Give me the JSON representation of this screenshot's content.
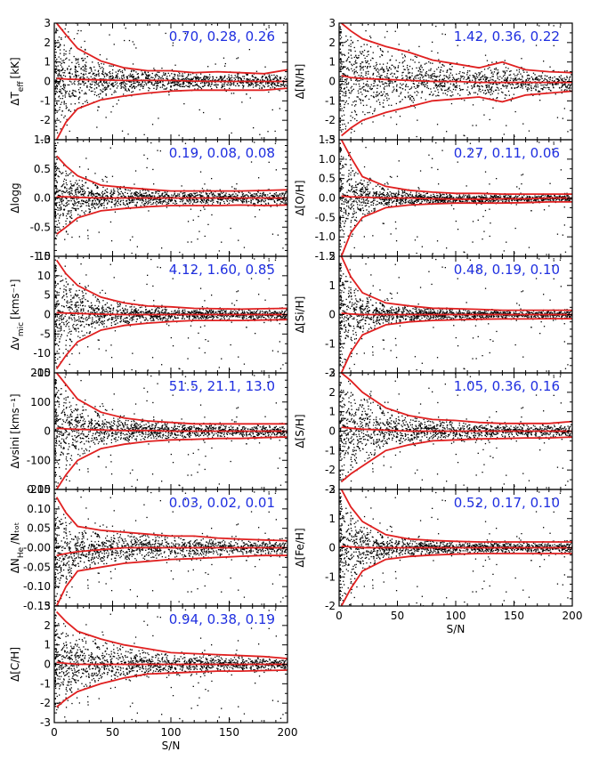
{
  "figure": {
    "x_label": "S/N",
    "x_ticks": [
      "0",
      "50",
      "100",
      "150",
      "200"
    ]
  },
  "chart_data": [
    {
      "type": "scatter",
      "ylabel": "ΔT_eff [kK]",
      "ylabel_main": "ΔT",
      "ylabel_sub": "eff",
      "ylabel_unit": "[kK]",
      "stats": "0.70, 0.28, 0.26",
      "xlim": [
        0,
        200
      ],
      "ylim": [
        -3,
        3
      ],
      "yticks": [
        "-3",
        "-2",
        "-1",
        "0",
        "1",
        "2",
        "3"
      ],
      "ytick_values": [
        -3,
        -2,
        -1,
        0,
        1,
        2,
        3
      ],
      "minor_step": 0.5,
      "band": {
        "x": [
          2,
          10,
          20,
          40,
          60,
          80,
          100,
          120,
          140,
          160,
          180,
          200
        ],
        "upper": [
          3.0,
          2.4,
          1.7,
          1.05,
          0.7,
          0.55,
          0.55,
          0.45,
          0.5,
          0.45,
          0.4,
          0.6
        ],
        "median": [
          0.15,
          0.12,
          0.1,
          0.08,
          0.05,
          0.05,
          0.05,
          0.02,
          0.0,
          0.0,
          0.0,
          0.0
        ],
        "lower": [
          -3.0,
          -2.1,
          -1.4,
          -0.95,
          -0.75,
          -0.6,
          -0.5,
          -0.45,
          -0.45,
          -0.45,
          -0.45,
          -0.35
        ]
      }
    },
    {
      "type": "scatter",
      "ylabel": "Δlogg",
      "ylabel_main": "Δlogg",
      "ylabel_sub": "",
      "ylabel_unit": "",
      "stats": "0.19, 0.08, 0.08",
      "xlim": [
        0,
        200
      ],
      "ylim": [
        -1.0,
        1.0
      ],
      "yticks": [
        "-1.0",
        "-0.5",
        "0.0",
        "0.5",
        "1.0"
      ],
      "ytick_values": [
        -1.0,
        -0.5,
        0.0,
        0.5,
        1.0
      ],
      "minor_step": 0.1,
      "band": {
        "x": [
          2,
          10,
          20,
          40,
          60,
          80,
          100,
          120,
          140,
          160,
          180,
          200
        ],
        "upper": [
          0.72,
          0.55,
          0.38,
          0.22,
          0.18,
          0.15,
          0.12,
          0.12,
          0.12,
          0.12,
          0.13,
          0.14
        ],
        "median": [
          0.02,
          0.02,
          0.01,
          0.0,
          0.0,
          0.0,
          0.0,
          0.0,
          0.0,
          0.0,
          0.0,
          0.0
        ],
        "lower": [
          -0.62,
          -0.5,
          -0.34,
          -0.22,
          -0.18,
          -0.15,
          -0.13,
          -0.13,
          -0.13,
          -0.12,
          -0.13,
          -0.12
        ]
      }
    },
    {
      "type": "scatter",
      "ylabel": "Δv_mic [kms^-1]",
      "ylabel_main": "Δv",
      "ylabel_sub": "mic",
      "ylabel_unit": "[kms^-1]",
      "stats": "4.12, 1.60, 0.85",
      "xlim": [
        0,
        200
      ],
      "ylim": [
        -15,
        15
      ],
      "yticks": [
        "-15",
        "-10",
        "-5",
        "0",
        "5",
        "10",
        "15"
      ],
      "ytick_values": [
        -15,
        -10,
        -5,
        0,
        5,
        10,
        15
      ],
      "minor_step": 2.5,
      "band": {
        "x": [
          2,
          10,
          20,
          40,
          60,
          80,
          100,
          120,
          140,
          160,
          180,
          200
        ],
        "upper": [
          14,
          10.5,
          7.5,
          4.5,
          3.0,
          2.2,
          2.0,
          1.6,
          1.5,
          1.4,
          1.5,
          1.6
        ],
        "median": [
          0.5,
          0.4,
          0.3,
          0.1,
          0.0,
          0.0,
          0.0,
          0.0,
          0.0,
          0.0,
          0.0,
          0.0
        ],
        "lower": [
          -14,
          -10.5,
          -7,
          -4,
          -2.8,
          -2.2,
          -1.8,
          -1.5,
          -1.5,
          -1.5,
          -1.4,
          -1.3
        ]
      }
    },
    {
      "type": "scatter",
      "ylabel": "Δvsini [kms^-1]",
      "ylabel_main": "Δvsini",
      "ylabel_sub": "",
      "ylabel_unit": "[kms^-1]",
      "stats": "51.5, 21.1, 13.0",
      "xlim": [
        0,
        200
      ],
      "ylim": [
        -200,
        200
      ],
      "yticks": [
        "-200",
        "-100",
        "0",
        "100",
        "200"
      ],
      "ytick_values": [
        -200,
        -100,
        0,
        100,
        200
      ],
      "minor_step": 25,
      "band": {
        "x": [
          2,
          10,
          20,
          40,
          60,
          80,
          100,
          120,
          140,
          160,
          180,
          200
        ],
        "upper": [
          200,
          160,
          110,
          65,
          45,
          35,
          30,
          25,
          25,
          25,
          25,
          25
        ],
        "median": [
          10,
          8,
          6,
          4,
          2,
          2,
          0,
          0,
          0,
          0,
          0,
          0
        ],
        "lower": [
          -200,
          -150,
          -100,
          -60,
          -45,
          -35,
          -30,
          -28,
          -25,
          -25,
          -22,
          -20
        ]
      }
    },
    {
      "type": "scatter",
      "ylabel": "ΔN_He/N_tot",
      "ylabel_main": "ΔN",
      "ylabel_sub": "He",
      "ylabel_unit": "/N_tot",
      "stats": "0.03, 0.02, 0.01",
      "xlim": [
        0,
        200
      ],
      "ylim": [
        -0.15,
        0.15
      ],
      "yticks": [
        "-0.15",
        "-0.10",
        "-0.05",
        "-0.00",
        "0.05",
        "0.10",
        "0.15"
      ],
      "ytick_values": [
        -0.15,
        -0.1,
        -0.05,
        0.0,
        0.05,
        0.1,
        0.15
      ],
      "minor_step": 0.025,
      "band": {
        "x": [
          2,
          10,
          20,
          40,
          60,
          80,
          100,
          120,
          140,
          160,
          180,
          200
        ],
        "upper": [
          0.13,
          0.09,
          0.055,
          0.045,
          0.04,
          0.035,
          0.03,
          0.03,
          0.025,
          0.022,
          0.02,
          0.018
        ],
        "median": [
          -0.02,
          -0.015,
          -0.01,
          -0.005,
          0.0,
          0.0,
          0.0,
          0.0,
          0.0,
          0.0,
          0.0,
          0.0
        ],
        "lower": [
          -0.15,
          -0.1,
          -0.06,
          -0.05,
          -0.04,
          -0.035,
          -0.03,
          -0.028,
          -0.025,
          -0.022,
          -0.02,
          -0.02
        ]
      }
    },
    {
      "type": "scatter",
      "ylabel": "Δ[C/H]",
      "ylabel_main": "Δ[C/H]",
      "ylabel_sub": "",
      "ylabel_unit": "",
      "stats": "0.94, 0.38, 0.19",
      "xlim": [
        0,
        200
      ],
      "ylim": [
        -3,
        3
      ],
      "yticks": [
        "-3",
        "-2",
        "-1",
        "0",
        "1",
        "2",
        "3"
      ],
      "ytick_values": [
        -3,
        -2,
        -1,
        0,
        1,
        2,
        3
      ],
      "minor_step": 0.5,
      "band": {
        "x": [
          2,
          10,
          20,
          40,
          60,
          80,
          100,
          120,
          140,
          160,
          180,
          200
        ],
        "upper": [
          2.7,
          2.2,
          1.7,
          1.3,
          1.0,
          0.8,
          0.6,
          0.55,
          0.5,
          0.45,
          0.4,
          0.3
        ],
        "median": [
          0.1,
          0.05,
          0.0,
          0.0,
          0.0,
          0.0,
          0.0,
          0.0,
          0.0,
          0.0,
          0.0,
          0.0
        ],
        "lower": [
          -2.2,
          -1.8,
          -1.4,
          -1.0,
          -0.7,
          -0.5,
          -0.45,
          -0.4,
          -0.35,
          -0.35,
          -0.32,
          -0.3
        ]
      }
    },
    {
      "type": "scatter",
      "ylabel": "Δ[N/H]",
      "ylabel_main": "Δ[N/H]",
      "ylabel_sub": "",
      "ylabel_unit": "",
      "stats": "1.42, 0.36, 0.22",
      "xlim": [
        0,
        200
      ],
      "ylim": [
        -3,
        3
      ],
      "yticks": [
        "-3",
        "-2",
        "-1",
        "0",
        "1",
        "2",
        "3"
      ],
      "ytick_values": [
        -3,
        -2,
        -1,
        0,
        1,
        2,
        3
      ],
      "minor_step": 0.5,
      "band": {
        "x": [
          2,
          10,
          20,
          40,
          60,
          80,
          100,
          120,
          140,
          160,
          180,
          200
        ],
        "upper": [
          3.0,
          2.6,
          2.2,
          1.8,
          1.5,
          1.1,
          0.9,
          0.7,
          1.0,
          0.6,
          0.5,
          0.45
        ],
        "median": [
          0.3,
          0.2,
          0.15,
          0.1,
          0.05,
          0.0,
          0.0,
          -0.05,
          -0.05,
          -0.05,
          -0.05,
          -0.05
        ],
        "lower": [
          -2.8,
          -2.4,
          -2.0,
          -1.6,
          -1.3,
          -1.0,
          -0.9,
          -0.8,
          -1.05,
          -0.7,
          -0.6,
          -0.5
        ]
      }
    },
    {
      "type": "scatter",
      "ylabel": "Δ[O/H]",
      "ylabel_main": "Δ[O/H]",
      "ylabel_sub": "",
      "ylabel_unit": "",
      "stats": "0.27, 0.11, 0.06",
      "xlim": [
        0,
        200
      ],
      "ylim": [
        -1.5,
        1.5
      ],
      "yticks": [
        "-1.5",
        "-1.0",
        "-0.5",
        "0.0",
        "0.5",
        "1.0",
        "1.5"
      ],
      "ytick_values": [
        -1.5,
        -1.0,
        -0.5,
        0.0,
        0.5,
        1.0,
        1.5
      ],
      "minor_step": 0.25,
      "band": {
        "x": [
          2,
          10,
          20,
          40,
          60,
          80,
          100,
          120,
          140,
          160,
          180,
          200
        ],
        "upper": [
          1.5,
          1.05,
          0.55,
          0.3,
          0.2,
          0.15,
          0.12,
          0.12,
          0.1,
          0.1,
          0.1,
          0.1
        ],
        "median": [
          0.05,
          0.03,
          0.02,
          0.0,
          0.0,
          -0.02,
          -0.03,
          -0.03,
          -0.02,
          -0.02,
          0.0,
          0.0
        ],
        "lower": [
          -1.5,
          -0.9,
          -0.5,
          -0.25,
          -0.18,
          -0.15,
          -0.13,
          -0.13,
          -0.13,
          -0.12,
          -0.1,
          -0.1
        ]
      }
    },
    {
      "type": "scatter",
      "ylabel": "Δ[Si/H]",
      "ylabel_main": "Δ[Si/H]",
      "ylabel_sub": "",
      "ylabel_unit": "",
      "stats": "0.48, 0.19, 0.10",
      "xlim": [
        0,
        200
      ],
      "ylim": [
        -2,
        2
      ],
      "yticks": [
        "-2",
        "-1",
        "0",
        "1",
        "2"
      ],
      "ytick_values": [
        -2,
        -1,
        0,
        1,
        2
      ],
      "minor_step": 0.25,
      "band": {
        "x": [
          2,
          10,
          20,
          40,
          60,
          80,
          100,
          120,
          140,
          160,
          180,
          200
        ],
        "upper": [
          2.0,
          1.3,
          0.75,
          0.4,
          0.3,
          0.22,
          0.2,
          0.18,
          0.15,
          0.15,
          0.15,
          0.15
        ],
        "median": [
          0.05,
          0.02,
          0.0,
          0.0,
          0.0,
          0.0,
          0.0,
          0.0,
          0.0,
          0.0,
          0.0,
          0.0
        ],
        "lower": [
          -2.0,
          -1.3,
          -0.7,
          -0.35,
          -0.25,
          -0.2,
          -0.18,
          -0.16,
          -0.15,
          -0.15,
          -0.14,
          -0.14
        ]
      }
    },
    {
      "type": "scatter",
      "ylabel": "Δ[S/H]",
      "ylabel_main": "Δ[S/H]",
      "ylabel_sub": "",
      "ylabel_unit": "",
      "stats": "1.05, 0.36, 0.16",
      "xlim": [
        0,
        200
      ],
      "ylim": [
        -3,
        3
      ],
      "yticks": [
        "-3",
        "-2",
        "-1",
        "0",
        "1",
        "2",
        "3"
      ],
      "ytick_values": [
        -3,
        -2,
        -1,
        0,
        1,
        2,
        3
      ],
      "minor_step": 0.5,
      "band": {
        "x": [
          2,
          10,
          20,
          40,
          60,
          80,
          100,
          120,
          140,
          160,
          180,
          200
        ],
        "upper": [
          3.0,
          2.6,
          2.0,
          1.2,
          0.8,
          0.6,
          0.55,
          0.45,
          0.4,
          0.4,
          0.4,
          0.5
        ],
        "median": [
          0.2,
          0.15,
          0.1,
          0.05,
          0.0,
          0.0,
          0.0,
          0.0,
          0.0,
          0.0,
          0.0,
          0.0
        ],
        "lower": [
          -2.6,
          -2.2,
          -1.8,
          -1.0,
          -0.7,
          -0.5,
          -0.45,
          -0.4,
          -0.38,
          -0.35,
          -0.35,
          -0.3
        ]
      }
    },
    {
      "type": "scatter",
      "ylabel": "Δ[Fe/H]",
      "ylabel_main": "Δ[Fe/H]",
      "ylabel_sub": "",
      "ylabel_unit": "",
      "stats": "0.52, 0.17, 0.10",
      "xlim": [
        0,
        200
      ],
      "ylim": [
        -2,
        2
      ],
      "yticks": [
        "-2",
        "-1",
        "0",
        "1",
        "2"
      ],
      "ytick_values": [
        -2,
        -1,
        0,
        1,
        2
      ],
      "minor_step": 0.25,
      "band": {
        "x": [
          2,
          10,
          20,
          40,
          60,
          80,
          100,
          120,
          140,
          160,
          180,
          200
        ],
        "upper": [
          2.0,
          1.4,
          0.9,
          0.45,
          0.3,
          0.25,
          0.22,
          0.2,
          0.2,
          0.2,
          0.2,
          0.2
        ],
        "median": [
          0.05,
          0.03,
          0.0,
          0.0,
          0.0,
          0.0,
          0.0,
          0.0,
          0.0,
          0.0,
          0.0,
          0.0
        ],
        "lower": [
          -2.0,
          -1.4,
          -0.8,
          -0.4,
          -0.3,
          -0.25,
          -0.22,
          -0.2,
          -0.2,
          -0.2,
          -0.2,
          -0.2
        ]
      }
    }
  ],
  "colors": {
    "band_line": "#e02020",
    "stats_text": "#1f2fe0",
    "points": "#000000",
    "axes": "#000000"
  }
}
